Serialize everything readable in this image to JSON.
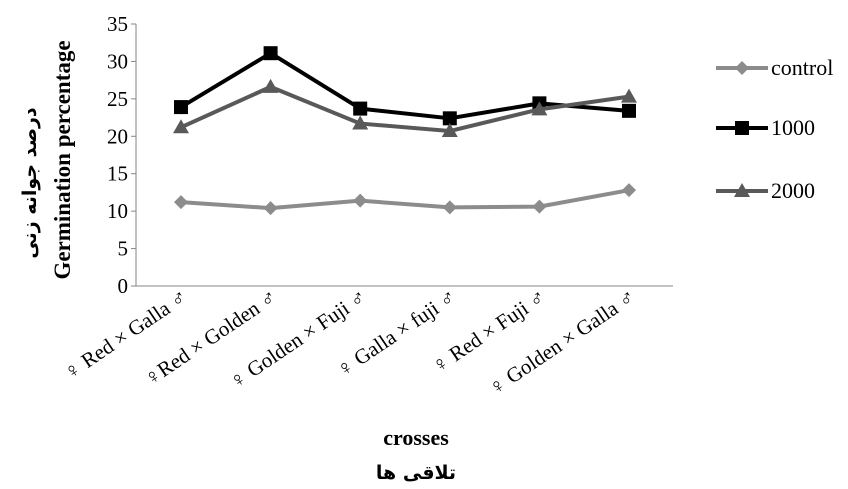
{
  "chart_data": {
    "type": "line",
    "categories": [
      "♀ Red × Galla ♂",
      "♀Red ×  Golden ♂",
      "♀ Golden × Fuji ♂",
      "♀ Galla × fuji ♂",
      "♀ Red × Fuji ♂",
      "♀ Golden × Galla ♂"
    ],
    "series": [
      {
        "name": "control",
        "values": [
          11.2,
          10.4,
          11.4,
          10.5,
          10.6,
          12.8
        ],
        "color": "#8c8c8c",
        "marker": "diamond"
      },
      {
        "name": "1000",
        "values": [
          23.9,
          31.1,
          23.7,
          22.4,
          24.4,
          23.4
        ],
        "color": "#000000",
        "marker": "square"
      },
      {
        "name": "2000",
        "values": [
          21.2,
          26.6,
          21.7,
          20.7,
          23.6,
          25.3
        ],
        "color": "#595959",
        "marker": "triangle"
      }
    ],
    "ylim": [
      0,
      35
    ],
    "yticks": [
      0,
      5,
      10,
      15,
      20,
      25,
      30,
      35
    ],
    "ylabel": "Germination percentage",
    "ylabel_fa": "درصد جوانه زنی",
    "xlabel": "crosses",
    "xlabel_fa": "تلاقی ها",
    "grid": false,
    "legend_position": "right"
  }
}
